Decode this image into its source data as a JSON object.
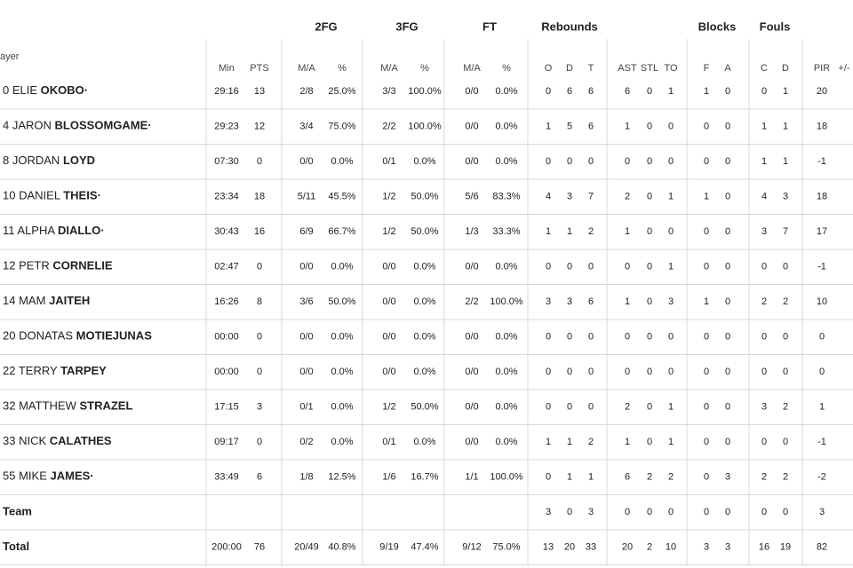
{
  "header": {
    "player": "ayer",
    "groups": {
      "fg2": "2FG",
      "fg3": "3FG",
      "ft": "FT",
      "rebounds": "Rebounds",
      "blocks": "Blocks",
      "fouls": "Fouls"
    },
    "columns": {
      "min": "Min",
      "pts": "PTS",
      "fg2_ma": "M/A",
      "fg2_pct": "%",
      "fg3_ma": "M/A",
      "fg3_pct": "%",
      "ft_ma": "M/A",
      "ft_pct": "%",
      "o": "O",
      "d": "D",
      "t": "T",
      "ast": "AST",
      "stl": "STL",
      "to": "TO",
      "bf": "F",
      "ba": "A",
      "fc": "C",
      "fd": "D",
      "pir": "PIR",
      "pm": "+/-"
    }
  },
  "rows": [
    {
      "number": "0",
      "first": "ELIE",
      "last": "OKOBO·",
      "min": "29:16",
      "pts": "13",
      "fg2_ma": "2/8",
      "fg2_pct": "25.0%",
      "fg3_ma": "3/3",
      "fg3_pct": "100.0%",
      "ft_ma": "0/0",
      "ft_pct": "0.0%",
      "o": "0",
      "d": "6",
      "t": "6",
      "ast": "6",
      "stl": "0",
      "to": "1",
      "bf": "1",
      "ba": "0",
      "fc": "0",
      "fd": "1",
      "pir": "20"
    },
    {
      "number": "4",
      "first": "JARON",
      "last": "BLOSSOMGAME·",
      "min": "29:23",
      "pts": "12",
      "fg2_ma": "3/4",
      "fg2_pct": "75.0%",
      "fg3_ma": "2/2",
      "fg3_pct": "100.0%",
      "ft_ma": "0/0",
      "ft_pct": "0.0%",
      "o": "1",
      "d": "5",
      "t": "6",
      "ast": "1",
      "stl": "0",
      "to": "0",
      "bf": "0",
      "ba": "0",
      "fc": "1",
      "fd": "1",
      "pir": "18"
    },
    {
      "number": "8",
      "first": "JORDAN",
      "last": "LOYD",
      "min": "07:30",
      "pts": "0",
      "fg2_ma": "0/0",
      "fg2_pct": "0.0%",
      "fg3_ma": "0/1",
      "fg3_pct": "0.0%",
      "ft_ma": "0/0",
      "ft_pct": "0.0%",
      "o": "0",
      "d": "0",
      "t": "0",
      "ast": "0",
      "stl": "0",
      "to": "0",
      "bf": "0",
      "ba": "0",
      "fc": "1",
      "fd": "1",
      "pir": "-1"
    },
    {
      "number": "10",
      "first": "DANIEL",
      "last": "THEIS·",
      "min": "23:34",
      "pts": "18",
      "fg2_ma": "5/11",
      "fg2_pct": "45.5%",
      "fg3_ma": "1/2",
      "fg3_pct": "50.0%",
      "ft_ma": "5/6",
      "ft_pct": "83.3%",
      "o": "4",
      "d": "3",
      "t": "7",
      "ast": "2",
      "stl": "0",
      "to": "1",
      "bf": "1",
      "ba": "0",
      "fc": "4",
      "fd": "3",
      "pir": "18"
    },
    {
      "number": "11",
      "first": "ALPHA",
      "last": "DIALLO·",
      "min": "30:43",
      "pts": "16",
      "fg2_ma": "6/9",
      "fg2_pct": "66.7%",
      "fg3_ma": "1/2",
      "fg3_pct": "50.0%",
      "ft_ma": "1/3",
      "ft_pct": "33.3%",
      "o": "1",
      "d": "1",
      "t": "2",
      "ast": "1",
      "stl": "0",
      "to": "0",
      "bf": "0",
      "ba": "0",
      "fc": "3",
      "fd": "7",
      "pir": "17"
    },
    {
      "number": "12",
      "first": "PETR",
      "last": "CORNELIE",
      "min": "02:47",
      "pts": "0",
      "fg2_ma": "0/0",
      "fg2_pct": "0.0%",
      "fg3_ma": "0/0",
      "fg3_pct": "0.0%",
      "ft_ma": "0/0",
      "ft_pct": "0.0%",
      "o": "0",
      "d": "0",
      "t": "0",
      "ast": "0",
      "stl": "0",
      "to": "1",
      "bf": "0",
      "ba": "0",
      "fc": "0",
      "fd": "0",
      "pir": "-1"
    },
    {
      "number": "14",
      "first": "MAM",
      "last": "JAITEH",
      "min": "16:26",
      "pts": "8",
      "fg2_ma": "3/6",
      "fg2_pct": "50.0%",
      "fg3_ma": "0/0",
      "fg3_pct": "0.0%",
      "ft_ma": "2/2",
      "ft_pct": "100.0%",
      "o": "3",
      "d": "3",
      "t": "6",
      "ast": "1",
      "stl": "0",
      "to": "3",
      "bf": "1",
      "ba": "0",
      "fc": "2",
      "fd": "2",
      "pir": "10"
    },
    {
      "number": "20",
      "first": "DONATAS",
      "last": "MOTIEJUNAS",
      "min": "00:00",
      "pts": "0",
      "fg2_ma": "0/0",
      "fg2_pct": "0.0%",
      "fg3_ma": "0/0",
      "fg3_pct": "0.0%",
      "ft_ma": "0/0",
      "ft_pct": "0.0%",
      "o": "0",
      "d": "0",
      "t": "0",
      "ast": "0",
      "stl": "0",
      "to": "0",
      "bf": "0",
      "ba": "0",
      "fc": "0",
      "fd": "0",
      "pir": "0"
    },
    {
      "number": "22",
      "first": "TERRY",
      "last": "TARPEY",
      "min": "00:00",
      "pts": "0",
      "fg2_ma": "0/0",
      "fg2_pct": "0.0%",
      "fg3_ma": "0/0",
      "fg3_pct": "0.0%",
      "ft_ma": "0/0",
      "ft_pct": "0.0%",
      "o": "0",
      "d": "0",
      "t": "0",
      "ast": "0",
      "stl": "0",
      "to": "0",
      "bf": "0",
      "ba": "0",
      "fc": "0",
      "fd": "0",
      "pir": "0"
    },
    {
      "number": "32",
      "first": "MATTHEW",
      "last": "STRAZEL",
      "min": "17:15",
      "pts": "3",
      "fg2_ma": "0/1",
      "fg2_pct": "0.0%",
      "fg3_ma": "1/2",
      "fg3_pct": "50.0%",
      "ft_ma": "0/0",
      "ft_pct": "0.0%",
      "o": "0",
      "d": "0",
      "t": "0",
      "ast": "2",
      "stl": "0",
      "to": "1",
      "bf": "0",
      "ba": "0",
      "fc": "3",
      "fd": "2",
      "pir": "1"
    },
    {
      "number": "33",
      "first": "NICK",
      "last": "CALATHES",
      "min": "09:17",
      "pts": "0",
      "fg2_ma": "0/2",
      "fg2_pct": "0.0%",
      "fg3_ma": "0/1",
      "fg3_pct": "0.0%",
      "ft_ma": "0/0",
      "ft_pct": "0.0%",
      "o": "1",
      "d": "1",
      "t": "2",
      "ast": "1",
      "stl": "0",
      "to": "1",
      "bf": "0",
      "ba": "0",
      "fc": "0",
      "fd": "0",
      "pir": "-1"
    },
    {
      "number": "55",
      "first": "MIKE",
      "last": "JAMES·",
      "min": "33:49",
      "pts": "6",
      "fg2_ma": "1/8",
      "fg2_pct": "12.5%",
      "fg3_ma": "1/6",
      "fg3_pct": "16.7%",
      "ft_ma": "1/1",
      "ft_pct": "100.0%",
      "o": "0",
      "d": "1",
      "t": "1",
      "ast": "6",
      "stl": "2",
      "to": "2",
      "bf": "0",
      "ba": "3",
      "fc": "2",
      "fd": "2",
      "pir": "-2"
    },
    {
      "label": "Team",
      "o": "3",
      "d": "0",
      "t": "3",
      "ast": "0",
      "stl": "0",
      "to": "0",
      "bf": "0",
      "ba": "0",
      "fc": "0",
      "fd": "0",
      "pir": "3"
    },
    {
      "label": "Total",
      "min": "200:00",
      "pts": "76",
      "fg2_ma": "20/49",
      "fg2_pct": "40.8%",
      "fg3_ma": "9/19",
      "fg3_pct": "47.4%",
      "ft_ma": "9/12",
      "ft_pct": "75.0%",
      "o": "13",
      "d": "20",
      "t": "33",
      "ast": "20",
      "stl": "2",
      "to": "10",
      "bf": "3",
      "ba": "3",
      "fc": "16",
      "fd": "19",
      "pir": "82"
    }
  ]
}
